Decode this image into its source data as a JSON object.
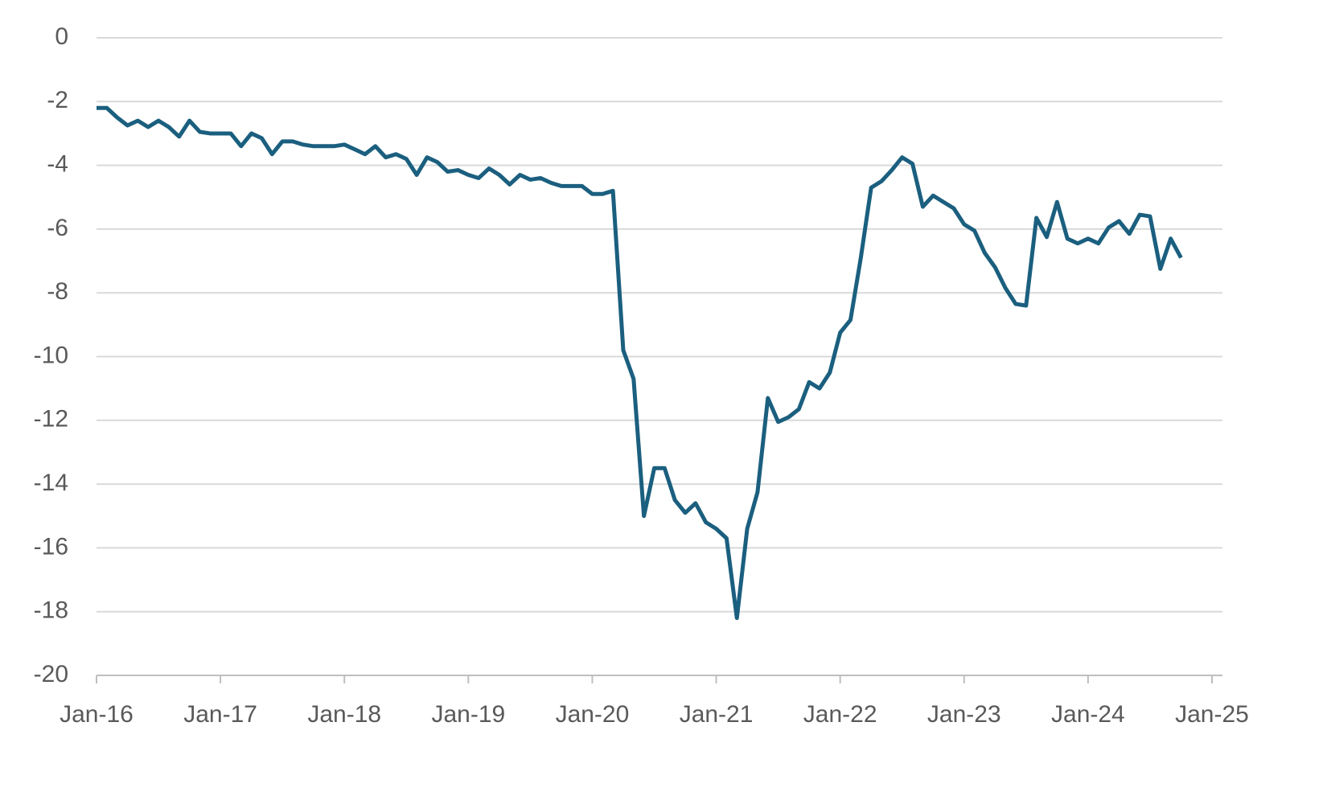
{
  "chart_data": {
    "type": "line",
    "x": [
      "Jan-16",
      "Feb-16",
      "Mar-16",
      "Apr-16",
      "May-16",
      "Jun-16",
      "Jul-16",
      "Aug-16",
      "Sep-16",
      "Oct-16",
      "Nov-16",
      "Dec-16",
      "Jan-17",
      "Feb-17",
      "Mar-17",
      "Apr-17",
      "May-17",
      "Jun-17",
      "Jul-17",
      "Aug-17",
      "Sep-17",
      "Oct-17",
      "Nov-17",
      "Dec-17",
      "Jan-18",
      "Feb-18",
      "Mar-18",
      "Apr-18",
      "May-18",
      "Jun-18",
      "Jul-18",
      "Aug-18",
      "Sep-18",
      "Oct-18",
      "Nov-18",
      "Dec-18",
      "Jan-19",
      "Feb-19",
      "Mar-19",
      "Apr-19",
      "May-19",
      "Jun-19",
      "Jul-19",
      "Aug-19",
      "Sep-19",
      "Oct-19",
      "Nov-19",
      "Dec-19",
      "Jan-20",
      "Feb-20",
      "Mar-20",
      "Apr-20",
      "May-20",
      "Jun-20",
      "Jul-20",
      "Aug-20",
      "Sep-20",
      "Oct-20",
      "Nov-20",
      "Dec-20",
      "Jan-21",
      "Feb-21",
      "Mar-21",
      "Apr-21",
      "May-21",
      "Jun-21",
      "Jul-21",
      "Aug-21",
      "Sep-21",
      "Oct-21",
      "Nov-21",
      "Dec-21",
      "Jan-22",
      "Feb-22",
      "Mar-22",
      "Apr-22",
      "May-22",
      "Jun-22",
      "Jul-22",
      "Aug-22",
      "Sep-22",
      "Oct-22",
      "Nov-22",
      "Dec-22",
      "Jan-23",
      "Feb-23",
      "Mar-23",
      "Apr-23",
      "May-23",
      "Jun-23",
      "Jul-23",
      "Aug-23",
      "Sep-23",
      "Oct-23",
      "Nov-23",
      "Dec-23",
      "Jan-24",
      "Feb-24",
      "Mar-24",
      "Apr-24",
      "May-24",
      "Jun-24",
      "Jul-24",
      "Aug-24",
      "Sep-24",
      "Oct-24"
    ],
    "values": [
      -2.2,
      -2.2,
      -2.5,
      -2.75,
      -2.6,
      -2.8,
      -2.6,
      -2.8,
      -3.1,
      -2.6,
      -2.95,
      -3.0,
      -3.0,
      -3.0,
      -3.4,
      -3.0,
      -3.15,
      -3.65,
      -3.25,
      -3.25,
      -3.35,
      -3.4,
      -3.4,
      -3.4,
      -3.35,
      -3.5,
      -3.65,
      -3.4,
      -3.75,
      -3.65,
      -3.8,
      -4.3,
      -3.75,
      -3.9,
      -4.2,
      -4.15,
      -4.3,
      -4.4,
      -4.1,
      -4.3,
      -4.6,
      -4.3,
      -4.45,
      -4.4,
      -4.55,
      -4.65,
      -4.65,
      -4.65,
      -4.9,
      -4.9,
      -4.8,
      -9.8,
      -10.7,
      -15.0,
      -13.5,
      -13.5,
      -14.5,
      -14.9,
      -14.6,
      -15.2,
      -15.4,
      -15.7,
      -18.2,
      -15.4,
      -14.25,
      -11.3,
      -12.05,
      -11.9,
      -11.65,
      -10.8,
      -11.0,
      -10.5,
      -9.25,
      -8.85,
      -6.9,
      -4.7,
      -4.5,
      -4.15,
      -3.75,
      -3.95,
      -5.3,
      -4.95,
      -5.15,
      -5.35,
      -5.85,
      -6.05,
      -6.75,
      -7.2,
      -7.85,
      -8.35,
      -8.4,
      -5.65,
      -6.25,
      -5.15,
      -6.3,
      -6.45,
      -6.3,
      -6.45,
      -5.95,
      -5.75,
      -6.15,
      -5.55,
      -5.6,
      -7.25,
      -6.3,
      -6.9
    ],
    "color": "#1b5f7f",
    "xlim": [
      "Jan-16",
      "Jan-25"
    ],
    "xticks": [
      "Jan-16",
      "Jan-17",
      "Jan-18",
      "Jan-19",
      "Jan-20",
      "Jan-21",
      "Jan-22",
      "Jan-23",
      "Jan-24",
      "Jan-25"
    ],
    "ylim": [
      -20,
      0
    ],
    "yticks": [
      0,
      -2,
      -4,
      -6,
      -8,
      -10,
      -12,
      -14,
      -16,
      -18,
      -20
    ],
    "grid": true
  }
}
